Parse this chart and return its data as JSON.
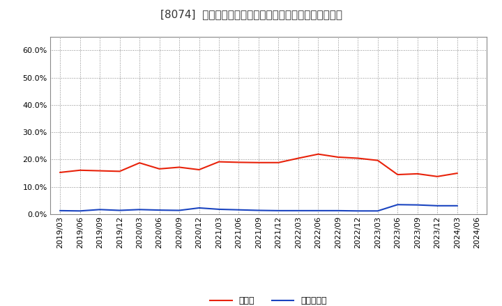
{
  "title": "[8074]  現頲金、有利子負債の総資産に対する比率の推移",
  "x_labels": [
    "2019/03",
    "2019/06",
    "2019/09",
    "2019/12",
    "2020/03",
    "2020/06",
    "2020/09",
    "2020/12",
    "2021/03",
    "2021/06",
    "2021/09",
    "2021/12",
    "2022/03",
    "2022/06",
    "2022/09",
    "2022/12",
    "2023/03",
    "2023/06",
    "2023/09",
    "2023/12",
    "2024/03",
    "2024/06"
  ],
  "cash": [
    15.3,
    16.1,
    15.9,
    15.7,
    18.8,
    16.6,
    17.2,
    16.3,
    19.2,
    19.0,
    18.9,
    18.9,
    20.5,
    22.0,
    20.9,
    20.5,
    19.7,
    14.5,
    14.8,
    13.8,
    15.0,
    null
  ],
  "debt": [
    1.3,
    1.2,
    1.7,
    1.4,
    1.7,
    1.5,
    1.4,
    2.3,
    1.8,
    1.6,
    1.4,
    1.3,
    1.3,
    1.3,
    1.3,
    1.2,
    1.2,
    3.5,
    3.4,
    3.1,
    3.1,
    null
  ],
  "cash_color": "#e8220a",
  "debt_color": "#1a44c0",
  "background_color": "#ffffff",
  "plot_bg_color": "#e8e8f0",
  "grid_color": "#aaaaaa",
  "ylim_min": 0.0,
  "ylim_max": 0.65,
  "yticks": [
    0.0,
    0.1,
    0.2,
    0.3,
    0.4,
    0.5,
    0.6
  ],
  "legend_cash": "現頲金",
  "legend_debt": "有利子負債",
  "title_fontsize": 11,
  "tick_fontsize": 8,
  "legend_fontsize": 9
}
